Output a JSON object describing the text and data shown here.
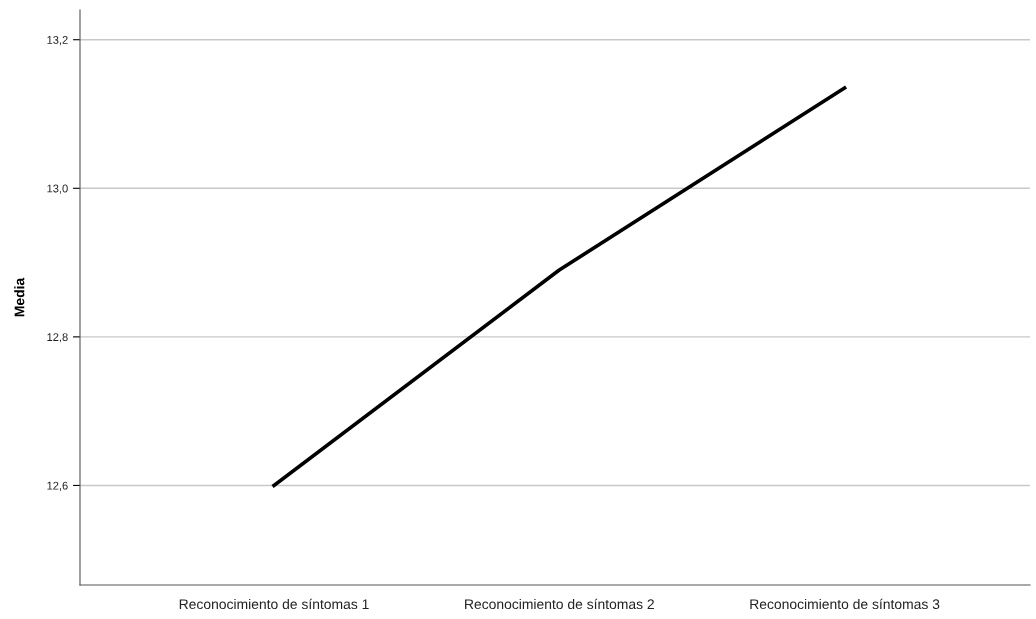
{
  "chart_data": {
    "type": "line",
    "ylabel": "Media",
    "categories": [
      "Reconocimiento de síntomas 1",
      "Reconocimiento de síntomas 2",
      "Reconocimiento de síntomas 3"
    ],
    "series": [
      {
        "color": "#000000",
        "values": [
          12.6,
          12.89,
          13.135
        ]
      }
    ],
    "ylim": [
      12.466,
      13.24
    ],
    "yticks": [
      {
        "value": 12.6,
        "label": "12,6"
      },
      {
        "value": 12.8,
        "label": "12,8"
      },
      {
        "value": 13.0,
        "label": "13,0"
      },
      {
        "value": 13.2,
        "label": "13,2"
      }
    ],
    "grid": "y",
    "marker": "none",
    "line_style": "solid",
    "legend": false
  }
}
